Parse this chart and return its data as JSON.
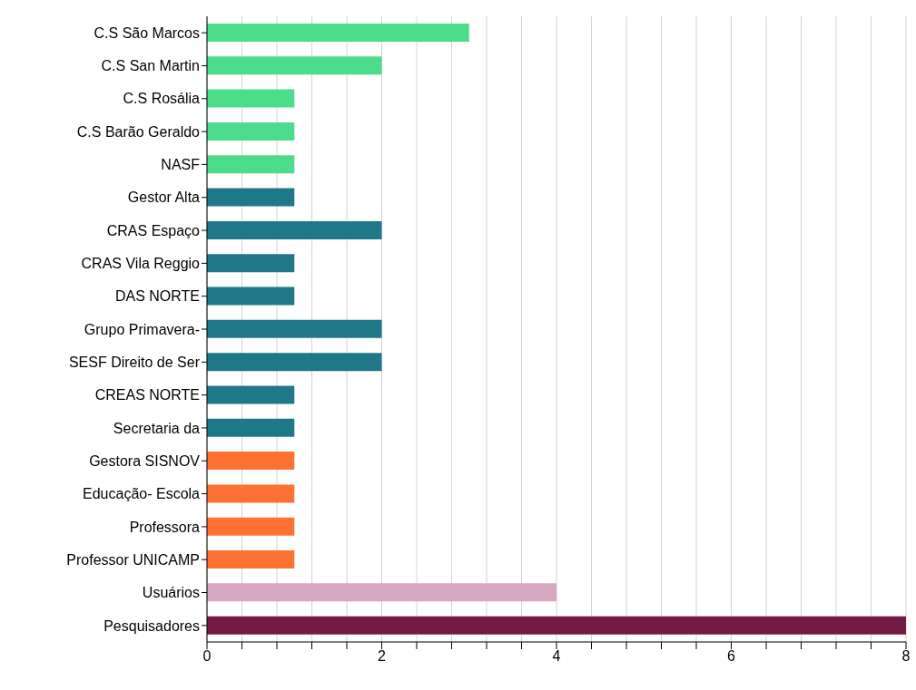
{
  "chart_data": {
    "type": "bar",
    "orientation": "horizontal",
    "categories": [
      "C.S São Marcos",
      "C.S San Martin",
      "C.S Rosália",
      "C.S Barão Geraldo",
      "NASF",
      "Gestor Alta",
      "CRAS Espaço",
      "CRAS Vila Reggio",
      "DAS NORTE",
      "Grupo Primavera-",
      "SESF Direito de Ser",
      "CREAS NORTE",
      "Secretaria da",
      "Gestora SISNOV",
      "Educação- Escola",
      "Professora",
      "Professor UNICAMP",
      "Usuários",
      "Pesquisadores"
    ],
    "values": [
      3,
      2,
      1,
      1,
      1,
      1,
      2,
      1,
      1,
      2,
      2,
      1,
      1,
      1,
      1,
      1,
      1,
      4,
      8
    ],
    "colors": [
      "#4cdc8c",
      "#4cdc8c",
      "#4cdc8c",
      "#4cdc8c",
      "#4cdc8c",
      "#1f7888",
      "#1f7888",
      "#1f7888",
      "#1f7888",
      "#1f7888",
      "#1f7888",
      "#1f7888",
      "#1f7888",
      "#ff7033",
      "#ff7033",
      "#ff7033",
      "#ff7033",
      "#d8a8c2",
      "#731a45"
    ],
    "xlim": [
      0,
      8
    ],
    "xticks": [
      0,
      {
        "value": 0.4,
        "label": null
      },
      {
        "value": 0.8,
        "label": null
      },
      {
        "value": 1.2,
        "label": null
      },
      {
        "value": 1.6,
        "label": null
      },
      2,
      {
        "value": 2.4,
        "label": null
      },
      {
        "value": 2.8,
        "label": null
      },
      {
        "value": 3.2,
        "label": null
      },
      {
        "value": 3.6,
        "label": null
      },
      4,
      {
        "value": 4.4,
        "label": null
      },
      {
        "value": 4.8,
        "label": null
      },
      {
        "value": 5.2,
        "label": null
      },
      {
        "value": 5.6,
        "label": null
      },
      6,
      {
        "value": 6.4,
        "label": null
      },
      {
        "value": 6.8,
        "label": null
      },
      {
        "value": 7.2,
        "label": null
      },
      {
        "value": 7.6,
        "label": null
      },
      8
    ],
    "grid": "x"
  }
}
